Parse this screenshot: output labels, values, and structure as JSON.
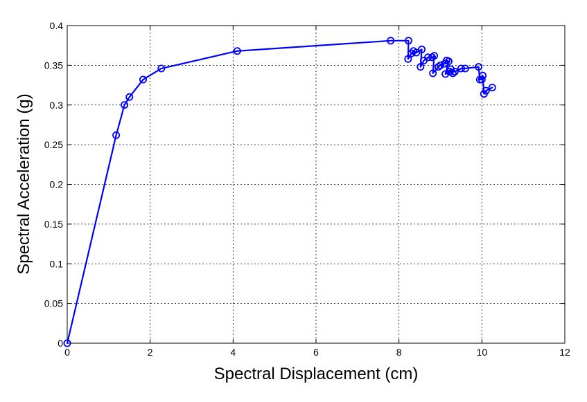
{
  "chart_data": {
    "type": "line",
    "title": "",
    "xlabel": "Spectral Displacement (cm)",
    "ylabel": "Spectral Acceleration (g)",
    "xlim": [
      0,
      12
    ],
    "ylim": [
      0,
      0.4
    ],
    "xticks": [
      "0",
      "2",
      "4",
      "6",
      "8",
      "10",
      "12"
    ],
    "yticks": [
      "0",
      "0.05",
      "0.1",
      "0.15",
      "0.2",
      "0.25",
      "0.3",
      "0.35",
      "0.4"
    ],
    "grid": true,
    "grid_style": "dotted",
    "marker": "circle",
    "color": "#0000ff",
    "series": [
      {
        "x": [
          0,
          1.18,
          1.38,
          1.5,
          1.83,
          2.27,
          4.1,
          7.8,
          8.23,
          8.22,
          8.3,
          8.35,
          8.42,
          8.55,
          8.52,
          8.6,
          8.7,
          8.8,
          8.85,
          8.82,
          8.95,
          9.0,
          9.1,
          9.15,
          9.2,
          9.12,
          9.25,
          9.3,
          9.22,
          9.35,
          9.5,
          9.6,
          9.92,
          9.95,
          10.0,
          10.02,
          10.05,
          10.1,
          10.25
        ],
        "y": [
          0,
          0.262,
          0.3,
          0.31,
          0.332,
          0.346,
          0.368,
          0.381,
          0.381,
          0.358,
          0.365,
          0.368,
          0.366,
          0.37,
          0.348,
          0.356,
          0.36,
          0.36,
          0.362,
          0.34,
          0.348,
          0.35,
          0.352,
          0.356,
          0.355,
          0.339,
          0.345,
          0.34,
          0.342,
          0.342,
          0.346,
          0.346,
          0.348,
          0.332,
          0.332,
          0.337,
          0.314,
          0.318,
          0.322
        ]
      }
    ]
  }
}
